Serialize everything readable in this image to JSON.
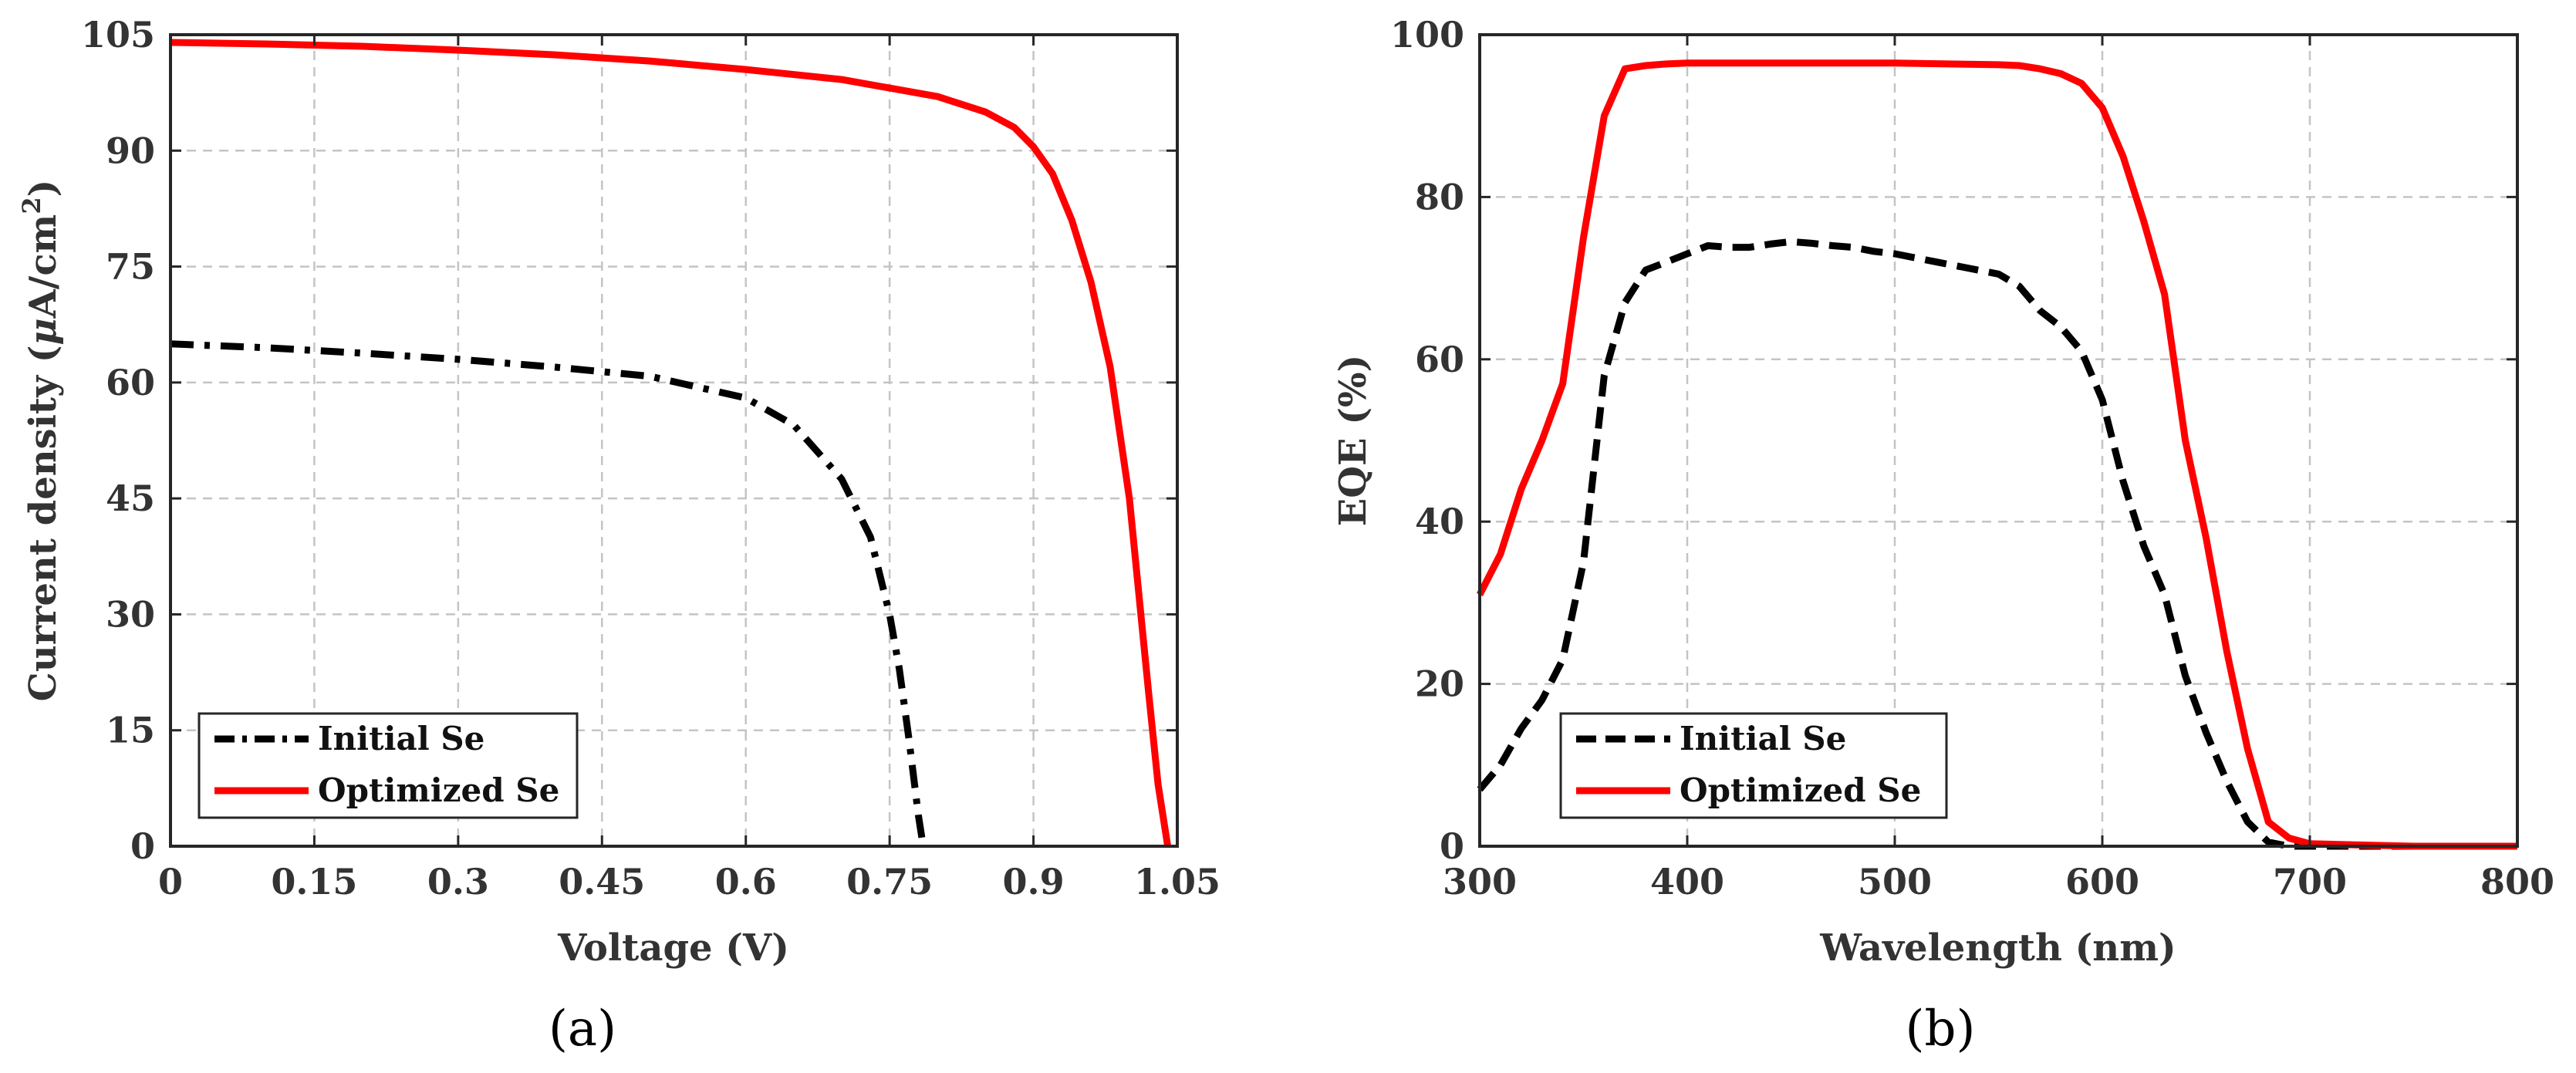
{
  "chart_data": [
    {
      "type": "line",
      "panel": "a",
      "caption": "(a)",
      "xlabel": "Voltage (V)",
      "ylabel_main": "Current density (",
      "ylabel_mu": "μ",
      "ylabel_unit": "A/cm",
      "ylabel_sup": "2",
      "ylabel_close": ")",
      "xlim": [
        0,
        1.05
      ],
      "ylim": [
        0,
        105
      ],
      "xticks": [
        0,
        0.15,
        0.3,
        0.45,
        0.6,
        0.75,
        0.9,
        1.05
      ],
      "xtick_labels": [
        "0",
        "0.15",
        "0.3",
        "0.45",
        "0.6",
        "0.75",
        "0.9",
        "1.05"
      ],
      "yticks": [
        0,
        15,
        30,
        45,
        60,
        75,
        90,
        105
      ],
      "ytick_labels": [
        "0",
        "15",
        "30",
        "45",
        "60",
        "75",
        "90",
        "105"
      ],
      "grid": true,
      "legend_position": "bottom-left",
      "series": [
        {
          "name": "Initial Se",
          "color": "#000000",
          "style": "dashdot",
          "x": [
            0,
            0.1,
            0.2,
            0.3,
            0.4,
            0.5,
            0.6,
            0.65,
            0.7,
            0.73,
            0.75,
            0.76,
            0.77,
            0.78,
            0.785
          ],
          "y": [
            65,
            64.5,
            63.8,
            63,
            62,
            60.8,
            58,
            54.5,
            47.5,
            40,
            30,
            23,
            14,
            4,
            0
          ]
        },
        {
          "name": "Optimized Se",
          "color": "#ff0000",
          "style": "solid",
          "x": [
            0,
            0.1,
            0.2,
            0.3,
            0.4,
            0.5,
            0.6,
            0.7,
            0.8,
            0.85,
            0.88,
            0.9,
            0.92,
            0.94,
            0.96,
            0.98,
            1.0,
            1.02,
            1.03,
            1.04
          ],
          "y": [
            104,
            103.8,
            103.5,
            103,
            102.4,
            101.6,
            100.5,
            99.2,
            97,
            95,
            93,
            90.5,
            87,
            81,
            73,
            62,
            45,
            20,
            8,
            0
          ]
        }
      ]
    },
    {
      "type": "line",
      "panel": "b",
      "caption": "(b)",
      "xlabel": "Wavelength (nm)",
      "ylabel": "EQE (%)",
      "xlim": [
        300,
        800
      ],
      "ylim": [
        0,
        100
      ],
      "xticks": [
        300,
        400,
        500,
        600,
        700,
        800
      ],
      "xtick_labels": [
        "300",
        "400",
        "500",
        "600",
        "700",
        "800"
      ],
      "yticks": [
        0,
        20,
        40,
        60,
        80,
        100
      ],
      "ytick_labels": [
        "0",
        "20",
        "40",
        "60",
        "80",
        "100"
      ],
      "grid": true,
      "legend_position": "bottom-left",
      "series": [
        {
          "name": "Initial Se",
          "color": "#000000",
          "style": "dashed",
          "x": [
            300,
            310,
            320,
            330,
            340,
            350,
            360,
            370,
            380,
            390,
            400,
            410,
            420,
            430,
            440,
            450,
            460,
            470,
            480,
            490,
            500,
            510,
            520,
            530,
            540,
            550,
            560,
            570,
            580,
            590,
            600,
            610,
            620,
            630,
            640,
            650,
            660,
            670,
            680,
            690,
            700,
            720,
            750,
            800
          ],
          "y": [
            7,
            10,
            14.5,
            18,
            23,
            35,
            58,
            67,
            71,
            72,
            73,
            74,
            73.8,
            73.8,
            74.2,
            74.5,
            74.3,
            74,
            73.8,
            73.3,
            73,
            72.5,
            72,
            71.5,
            71,
            70.5,
            69,
            66,
            64,
            61,
            55,
            45,
            37,
            31,
            21,
            14,
            8,
            3,
            0.5,
            0,
            0,
            0,
            0,
            0
          ]
        },
        {
          "name": "Optimized Se",
          "color": "#ff0000",
          "style": "solid",
          "x": [
            300,
            310,
            320,
            330,
            340,
            350,
            360,
            370,
            380,
            390,
            400,
            450,
            500,
            550,
            560,
            570,
            580,
            590,
            600,
            610,
            620,
            630,
            640,
            650,
            660,
            670,
            680,
            690,
            700,
            750,
            800
          ],
          "y": [
            31,
            36,
            44,
            50,
            57,
            75,
            90,
            95.8,
            96.2,
            96.4,
            96.5,
            96.5,
            96.5,
            96.3,
            96.2,
            95.8,
            95.2,
            94,
            91,
            85,
            77,
            68,
            50,
            38,
            24,
            12,
            3,
            1,
            0.3,
            0,
            0
          ]
        }
      ]
    }
  ]
}
